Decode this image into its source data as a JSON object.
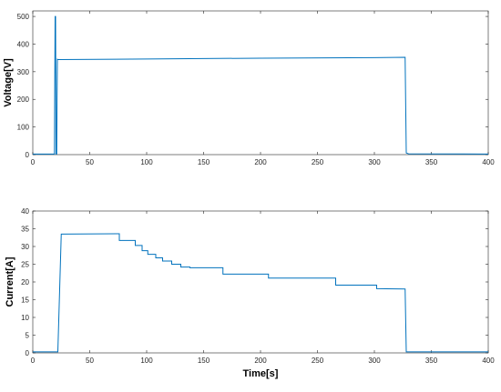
{
  "chart_data": [
    {
      "type": "line",
      "title": "",
      "xlabel": "",
      "ylabel": "Voltage[V]",
      "xlim": [
        0,
        400
      ],
      "ylim": [
        0,
        520
      ],
      "xticks": [
        0,
        50,
        100,
        150,
        200,
        250,
        300,
        350,
        400
      ],
      "yticks": [
        0,
        100,
        200,
        300,
        400,
        500
      ],
      "grid": false,
      "series": [
        {
          "color": "#0072BD",
          "x": [
            0,
            19,
            19.6,
            20,
            20.4,
            21,
            21.3,
            21.6,
            22,
            100,
            200,
            300,
            327,
            328,
            330,
            400
          ],
          "y": [
            2,
            2,
            500,
            500,
            2,
            2,
            200,
            345,
            344,
            346,
            349,
            351,
            352,
            6,
            3,
            2
          ]
        }
      ]
    },
    {
      "type": "line",
      "title": "",
      "xlabel": "Time[s]",
      "ylabel": "Current[A]",
      "xlim": [
        0,
        400
      ],
      "ylim": [
        0,
        40
      ],
      "xticks": [
        0,
        50,
        100,
        150,
        200,
        250,
        300,
        350,
        400
      ],
      "yticks": [
        0,
        5,
        10,
        15,
        20,
        25,
        30,
        35,
        40
      ],
      "grid": false,
      "series": [
        {
          "color": "#0072BD",
          "x": [
            0,
            22,
            25,
            76,
            76,
            90,
            90,
            96,
            96,
            101,
            101,
            108,
            108,
            114,
            114,
            122,
            122,
            130,
            130,
            138,
            138,
            167,
            167,
            207,
            207,
            266,
            266,
            302,
            302,
            327,
            328,
            400
          ],
          "y": [
            0.3,
            0.3,
            33.5,
            33.6,
            31.7,
            31.7,
            30.3,
            30.3,
            28.8,
            28.8,
            27.8,
            27.8,
            26.8,
            26.8,
            25.9,
            25.9,
            25.0,
            25.0,
            24.2,
            24.2,
            24.0,
            24.0,
            22.2,
            22.2,
            21.1,
            21.1,
            19.1,
            19.1,
            18.1,
            18.0,
            0.3,
            0.3
          ]
        }
      ]
    }
  ]
}
